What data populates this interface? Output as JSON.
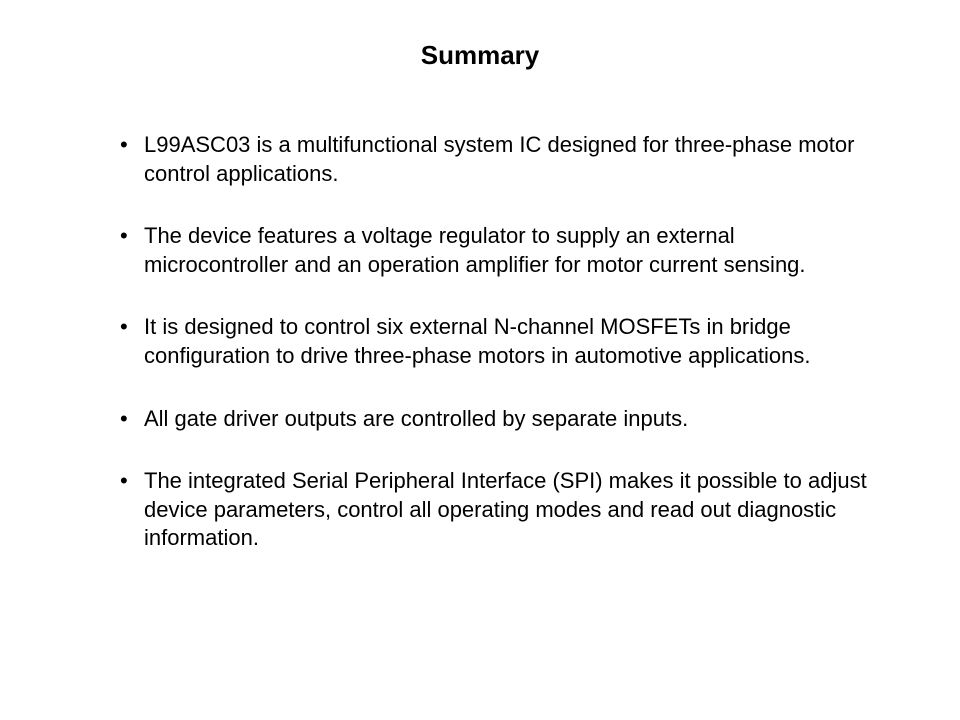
{
  "title": "Summary",
  "title_fontsize": 26,
  "title_fontweight": "bold",
  "body_fontsize": 22,
  "text_color": "#000000",
  "background_color": "#ffffff",
  "bullets": [
    "L99ASC03 is a multifunctional system IC designed for three-phase motor control applications.",
    "The device features a voltage regulator to supply an external microcontroller and an operation amplifier for motor current sensing.",
    "It is designed to control six external N-channel MOSFETs in bridge configuration to drive three-phase motors in automotive applications.",
    "All gate driver outputs are controlled by separate inputs.",
    "The integrated Serial Peripheral Interface (SPI) makes it possible to adjust device parameters, control all operating modes and read out diagnostic information."
  ]
}
